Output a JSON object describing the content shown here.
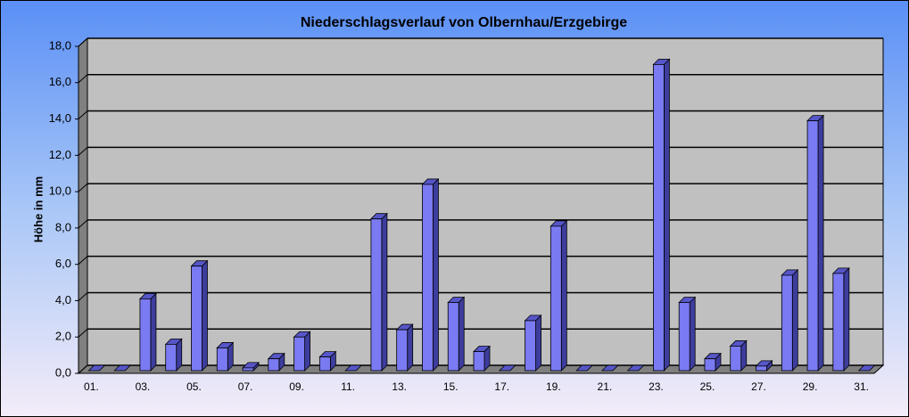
{
  "chart_data": {
    "type": "bar3d",
    "title": "Niederschlagsverlauf von Olbernhau/Erzgebirge",
    "y_label": "Höhe in mm",
    "categories": [
      "01.",
      null,
      "03.",
      null,
      "05.",
      null,
      "07.",
      null,
      "09.",
      null,
      "11.",
      null,
      "13.",
      null,
      "15.",
      null,
      "17.",
      null,
      "19.",
      null,
      "21.",
      null,
      "23.",
      null,
      "25.",
      null,
      "27.",
      null,
      "29.",
      null,
      "31."
    ],
    "values": [
      0,
      0,
      4.1,
      1.6,
      5.9,
      1.4,
      0.3,
      0.8,
      2.0,
      0.9,
      0,
      8.5,
      2.4,
      10.4,
      3.9,
      1.2,
      0,
      2.9,
      8.1,
      0,
      0,
      0,
      17.0,
      3.9,
      0.8,
      1.5,
      0.4,
      5.4,
      13.9,
      5.5,
      0
    ],
    "color": "#7a7af2",
    "ylim": [
      0,
      18
    ],
    "yticks": [
      {
        "value": 0,
        "label": "0,0"
      },
      {
        "value": 2,
        "label": "2,0"
      },
      {
        "value": 4,
        "label": "4,0"
      },
      {
        "value": 6,
        "label": "6,0"
      },
      {
        "value": 8,
        "label": "8,0"
      },
      {
        "value": 10,
        "label": "10,0"
      },
      {
        "value": 12,
        "label": "12,0"
      },
      {
        "value": 14,
        "label": "14,0"
      },
      {
        "value": 16,
        "label": "16,0"
      },
      {
        "value": 18,
        "label": "18,0"
      }
    ],
    "grid": true
  }
}
